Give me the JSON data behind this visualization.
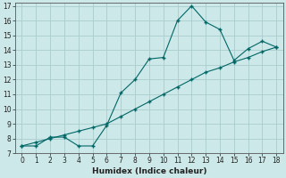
{
  "xlabel": "Humidex (Indice chaleur)",
  "bg_color": "#cce8e8",
  "line_color": "#006666",
  "grid_color": "#aacccc",
  "x_data": [
    0,
    1,
    2,
    3,
    4,
    5,
    6,
    7,
    8,
    9,
    10,
    11,
    12,
    13,
    14,
    15,
    16,
    17,
    18
  ],
  "y_curve": [
    7.5,
    7.5,
    8.1,
    8.1,
    7.5,
    7.5,
    8.9,
    11.1,
    12.0,
    13.4,
    13.5,
    16.0,
    17.0,
    15.9,
    15.4,
    13.3,
    14.1,
    14.6,
    14.2
  ],
  "y_linear": [
    7.5,
    7.75,
    8.0,
    8.25,
    8.5,
    8.75,
    9.0,
    9.5,
    10.0,
    10.5,
    11.0,
    11.5,
    12.0,
    12.5,
    12.8,
    13.2,
    13.5,
    13.9,
    14.2
  ],
  "ylim": [
    7,
    17
  ],
  "xlim": [
    -0.5,
    18.5
  ],
  "yticks": [
    7,
    8,
    9,
    10,
    11,
    12,
    13,
    14,
    15,
    16,
    17
  ],
  "xticks": [
    0,
    1,
    2,
    3,
    4,
    5,
    6,
    7,
    8,
    9,
    10,
    11,
    12,
    13,
    14,
    15,
    16,
    17,
    18
  ]
}
